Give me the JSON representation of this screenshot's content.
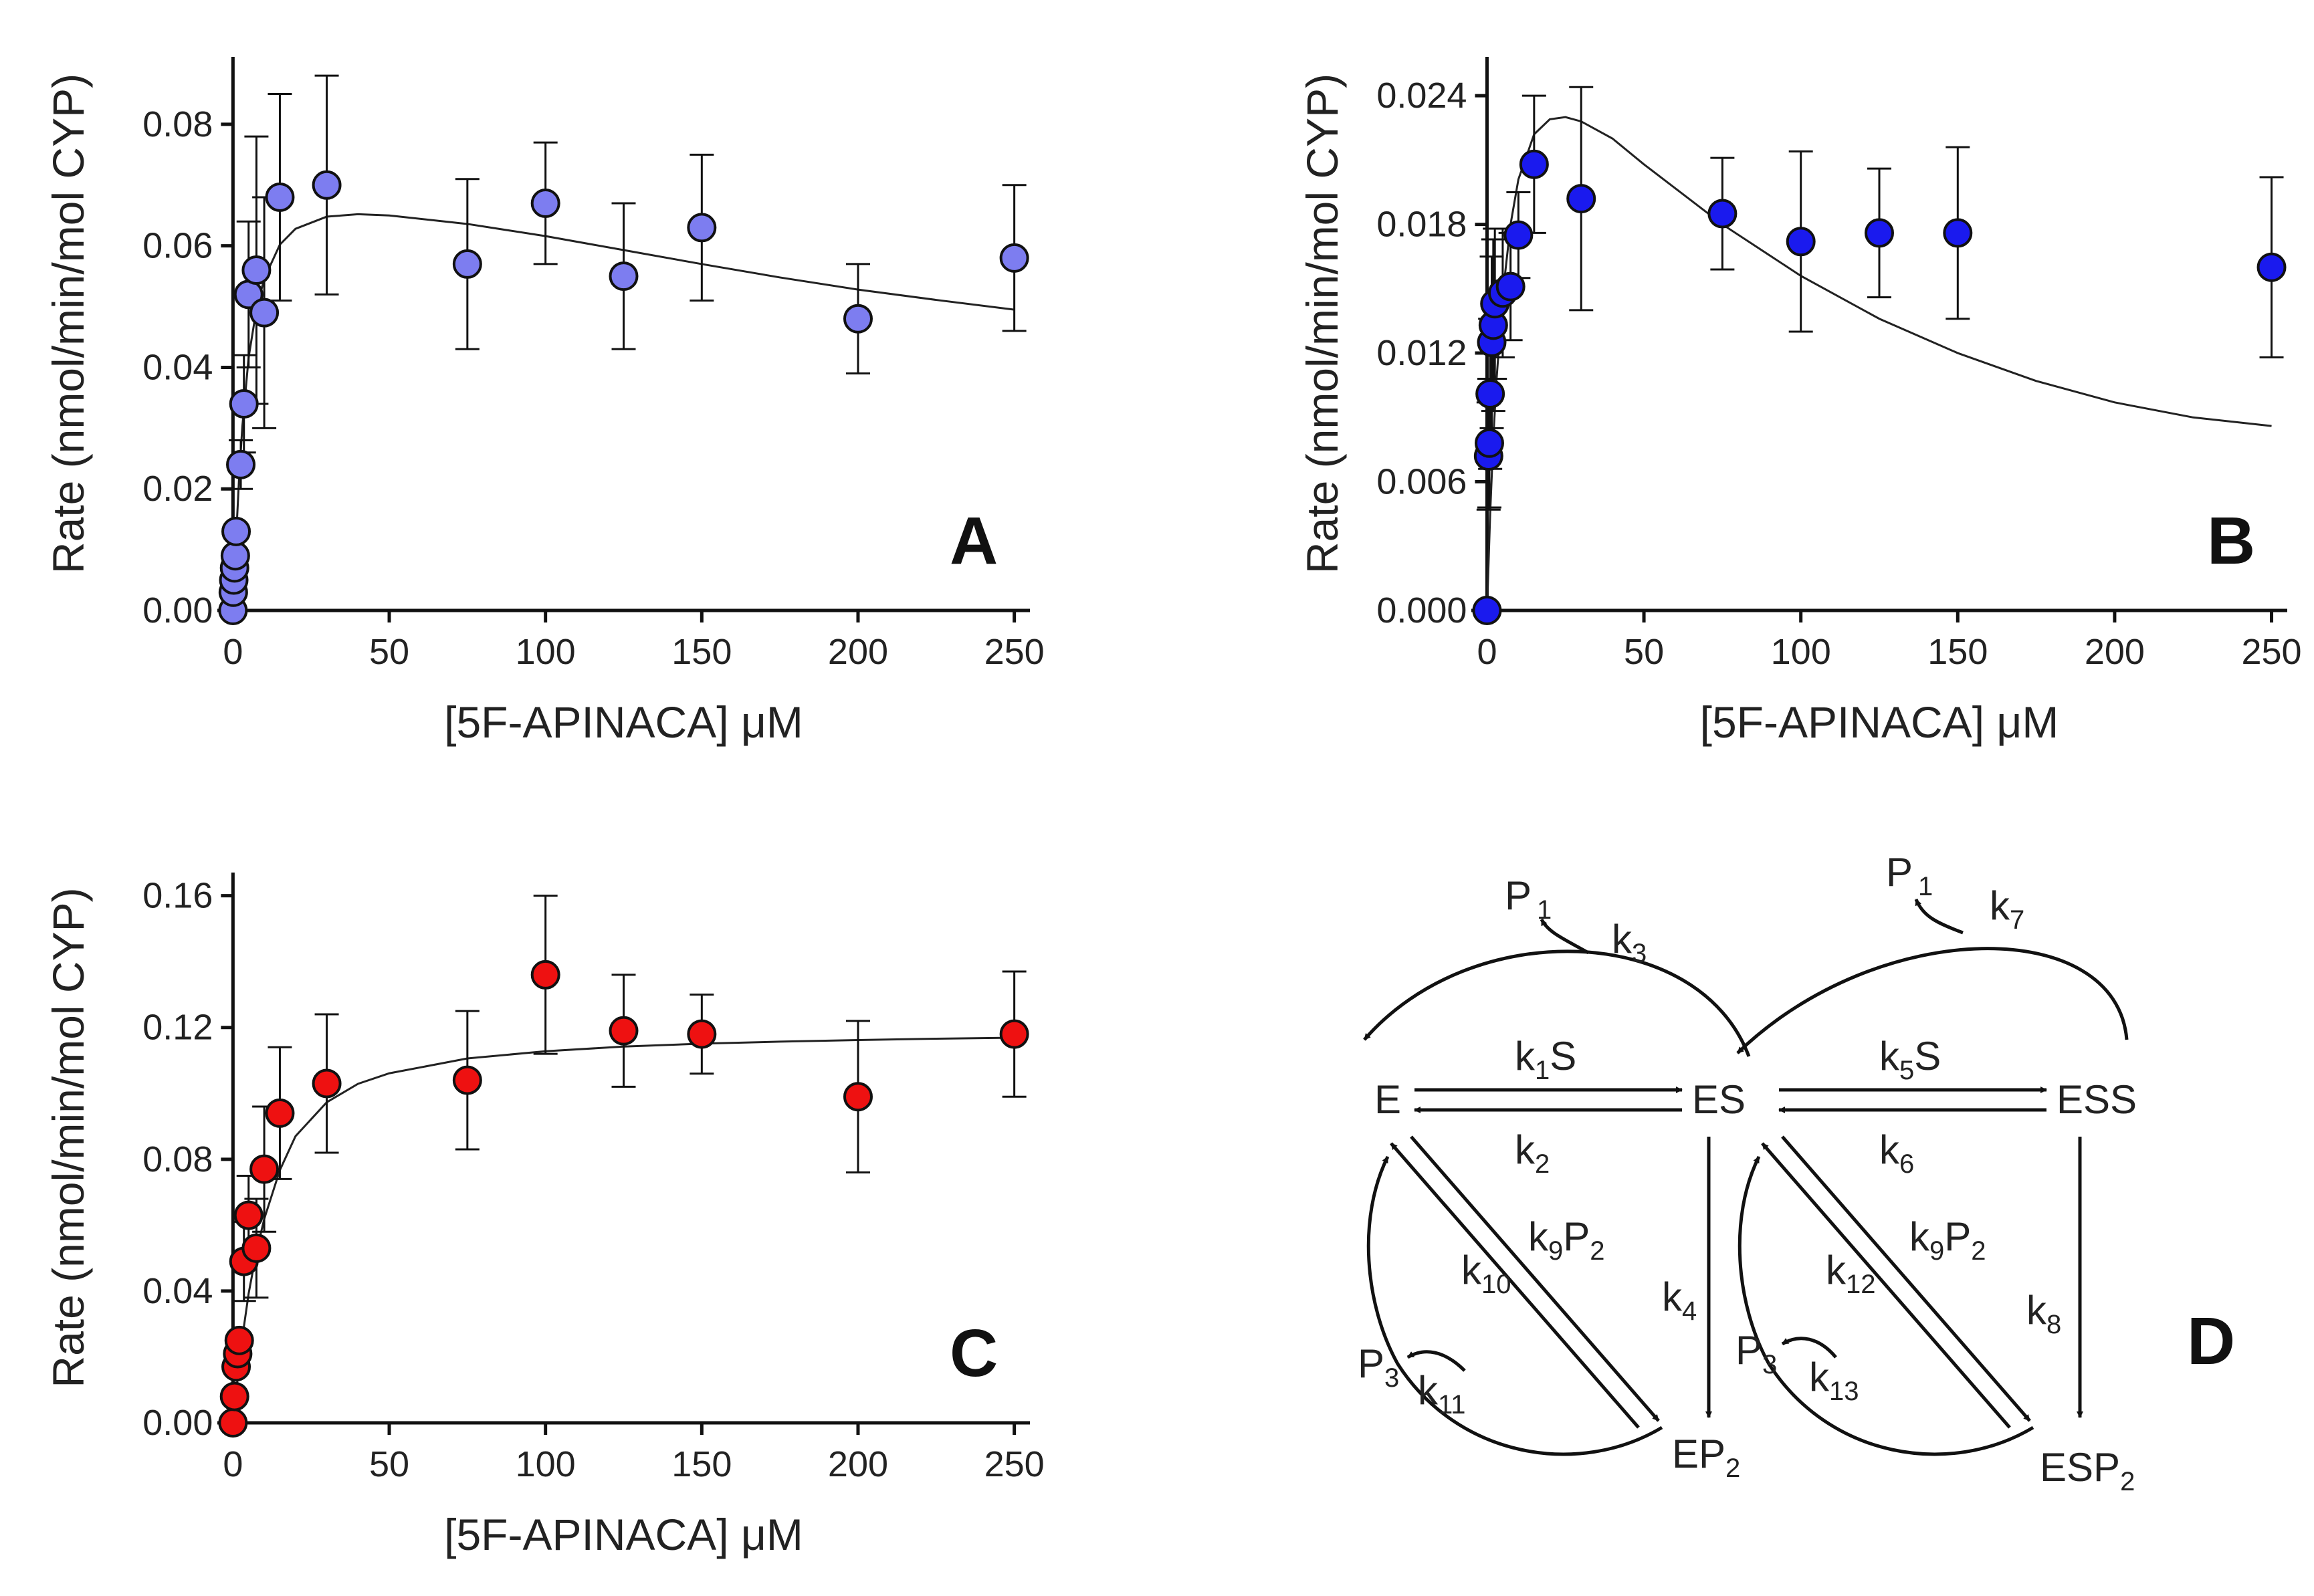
{
  "chart_data": [
    {
      "type": "scatter",
      "panel": "A",
      "title": "",
      "xlabel": "[5F-APINACA] μM",
      "ylabel": "Rate (nmol/min/mol CYP)",
      "xlim": [
        -5,
        255
      ],
      "ylim": [
        0,
        0.09
      ],
      "xticks": [
        "0",
        "50",
        "100",
        "150",
        "200",
        "250"
      ],
      "yticks": [
        "0.00",
        "0.02",
        "0.04",
        "0.06",
        "0.08"
      ],
      "point_color": "#7d7df0",
      "series": [
        {
          "name": "measured rate",
          "x": [
            0,
            0.1,
            0.25,
            0.5,
            0.75,
            1,
            2.5,
            3.5,
            5,
            7.5,
            10,
            15,
            30,
            75,
            100,
            125,
            150,
            200,
            250
          ],
          "y": [
            0.0,
            0.003,
            0.005,
            0.007,
            0.009,
            0.013,
            0.024,
            0.034,
            0.052,
            0.056,
            0.049,
            0.068,
            0.07,
            0.057,
            0.067,
            0.055,
            0.063,
            0.048,
            0.058
          ],
          "err": [
            0,
            0,
            0,
            0,
            0,
            0,
            0.004,
            0.008,
            0.012,
            0.022,
            0.019,
            0.017,
            0.018,
            0.014,
            0.01,
            0.012,
            0.012,
            0.009,
            0.012
          ]
        }
      ],
      "fit": {
        "x": [
          0,
          1,
          2,
          3,
          5,
          7.5,
          10,
          15,
          20,
          30,
          40,
          50,
          75,
          100,
          125,
          150,
          175,
          200,
          225,
          250
        ],
        "y": [
          0,
          0.0119,
          0.0223,
          0.0303,
          0.0416,
          0.0496,
          0.0546,
          0.0602,
          0.0628,
          0.0648,
          0.0652,
          0.065,
          0.0636,
          0.0616,
          0.0593,
          0.057,
          0.0548,
          0.0528,
          0.0511,
          0.0495
        ]
      },
      "panel_label": "A"
    },
    {
      "type": "scatter",
      "panel": "B",
      "title": "",
      "xlabel": "[5F-APINACA] μM",
      "ylabel": "Rate (nmol/min/mol CYP)",
      "xlim": [
        -5,
        255
      ],
      "ylim": [
        0,
        0.0255
      ],
      "xticks": [
        "0",
        "50",
        "100",
        "150",
        "200",
        "250"
      ],
      "yticks": [
        "0.000",
        "0.006",
        "0.012",
        "0.018",
        "0.024"
      ],
      "point_color": "#1a1aee",
      "series": [
        {
          "name": "measured rate",
          "x": [
            0,
            0.5,
            0.75,
            1,
            1.5,
            2,
            2.5,
            5,
            7.5,
            10,
            15,
            30,
            75,
            100,
            125,
            150,
            250
          ],
          "y": [
            0.0,
            0.0072,
            0.0078,
            0.0101,
            0.0125,
            0.0133,
            0.0143,
            0.0148,
            0.0151,
            0.0175,
            0.0208,
            0.0192,
            0.0185,
            0.0172,
            0.0176,
            0.0176,
            0.016
          ],
          "err": [
            0,
            0.0025,
            0.003,
            0.0035,
            0.004,
            0.004,
            0.0035,
            0.003,
            0.0025,
            0.002,
            0.0032,
            0.0052,
            0.0026,
            0.0042,
            0.003,
            0.004,
            0.0042
          ]
        }
      ],
      "fit": {
        "x": [
          0,
          1,
          2,
          3,
          5,
          7.5,
          10,
          15,
          20,
          25,
          30,
          40,
          50,
          75,
          100,
          125,
          150,
          175,
          200,
          225,
          250
        ],
        "y": [
          0,
          0.0045,
          0.008,
          0.0107,
          0.0147,
          0.018,
          0.0201,
          0.0222,
          0.0229,
          0.023,
          0.0228,
          0.022,
          0.0208,
          0.018,
          0.0156,
          0.0136,
          0.012,
          0.0107,
          0.0097,
          0.009,
          0.0086
        ]
      },
      "panel_label": "B"
    },
    {
      "type": "scatter",
      "panel": "C",
      "title": "",
      "xlabel": "[5F-APINACA] μM",
      "ylabel": "Rate (nmol/min/mol CYP)",
      "xlim": [
        -5,
        255
      ],
      "ylim": [
        0,
        0.165
      ],
      "xticks": [
        "0",
        "50",
        "100",
        "150",
        "200",
        "250"
      ],
      "yticks": [
        "0.00",
        "0.04",
        "0.08",
        "0.12",
        "0.16"
      ],
      "point_color": "#ee1111",
      "series": [
        {
          "name": "measured rate",
          "x": [
            0,
            0.5,
            1,
            1.5,
            2,
            3.5,
            5,
            7.5,
            10,
            15,
            30,
            75,
            100,
            125,
            150,
            200,
            250
          ],
          "y": [
            0.0,
            0.008,
            0.017,
            0.021,
            0.025,
            0.049,
            0.063,
            0.053,
            0.077,
            0.094,
            0.103,
            0.104,
            0.136,
            0.119,
            0.118,
            0.099,
            0.118
          ],
          "err": [
            0,
            0,
            0,
            0,
            0,
            0.012,
            0.012,
            0.015,
            0.019,
            0.02,
            0.021,
            0.021,
            0.024,
            0.017,
            0.012,
            0.023,
            0.019
          ]
        }
      ],
      "fit": {
        "x": [
          0,
          2.5,
          5,
          7.5,
          10,
          15,
          20,
          30,
          40,
          50,
          75,
          100,
          125,
          150,
          175,
          200,
          225,
          250
        ],
        "y": [
          0,
          0.0226,
          0.0392,
          0.0519,
          0.0619,
          0.0767,
          0.087,
          0.0973,
          0.1029,
          0.1061,
          0.1106,
          0.1128,
          0.1142,
          0.1151,
          0.1157,
          0.1162,
          0.1166,
          0.1169
        ]
      },
      "panel_label": "C"
    }
  ],
  "scheme": {
    "panel_label": "D",
    "nodes": {
      "E": "E",
      "ES": "ES",
      "ESS": "ESS",
      "EP2_base": "EP",
      "EP2_sub": "2",
      "ESP2_base": "ESP",
      "ESP2_sub": "2",
      "P1_left_base": "P",
      "P1_left_sub": "1",
      "P1_right_base": "P",
      "P1_right_sub": "1",
      "P3_left_base": "P",
      "P3_left_sub": "3",
      "P3_right_base": "P",
      "P3_right_sub": "3"
    },
    "rates": {
      "k1": {
        "base": "k",
        "sub": "1",
        "suffix": "S"
      },
      "k2": {
        "base": "k",
        "sub": "2"
      },
      "k3": {
        "base": "k",
        "sub": "3"
      },
      "k4": {
        "base": "k",
        "sub": "4"
      },
      "k5": {
        "base": "k",
        "sub": "5",
        "suffix": "S"
      },
      "k6": {
        "base": "k",
        "sub": "6"
      },
      "k7": {
        "base": "k",
        "sub": "7"
      },
      "k8": {
        "base": "k",
        "sub": "8"
      },
      "k9_left": {
        "base": "k",
        "sub": "9",
        "suffix": "P",
        "suffix_sub": "2"
      },
      "k9_right": {
        "base": "k",
        "sub": "9",
        "suffix": "P",
        "suffix_sub": "2"
      },
      "k10": {
        "base": "k",
        "sub": "10"
      },
      "k11": {
        "base": "k",
        "sub": "11"
      },
      "k12": {
        "base": "k",
        "sub": "12"
      },
      "k13": {
        "base": "k",
        "sub": "13"
      }
    }
  }
}
